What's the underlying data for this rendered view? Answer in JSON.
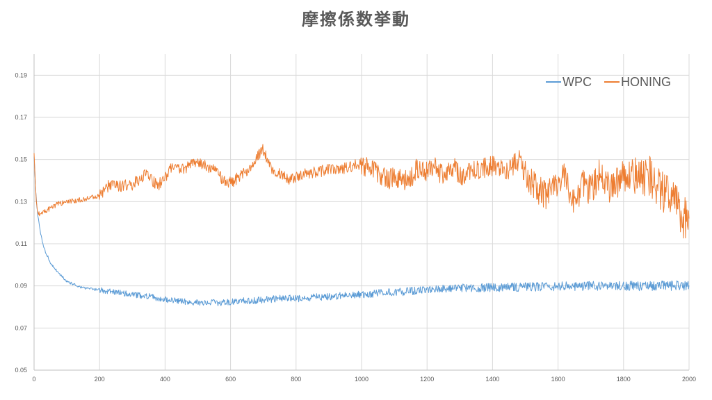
{
  "chart_data": {
    "type": "line",
    "title": "摩擦係数挙動",
    "xlabel": "",
    "ylabel": "",
    "xlim": [
      0,
      2000
    ],
    "ylim": [
      0.05,
      0.2
    ],
    "x_ticks": [
      0,
      200,
      400,
      600,
      800,
      1000,
      1200,
      1400,
      1600,
      1800,
      2000
    ],
    "y_ticks": [
      0.05,
      0.07,
      0.09,
      0.11,
      0.13,
      0.15,
      0.17,
      0.19
    ],
    "y_tick_labels": [
      "0.05",
      "0.07",
      "0.09",
      "0.11",
      "0.13",
      "0.15",
      "0.17",
      "0.19"
    ],
    "grid": "vertical and horizontal major gridlines",
    "legend_position": "top-right",
    "x": [
      0,
      5,
      10,
      20,
      30,
      50,
      75,
      100,
      150,
      200,
      230,
      250,
      300,
      340,
      360,
      380,
      400,
      420,
      440,
      460,
      480,
      500,
      520,
      540,
      560,
      580,
      600,
      620,
      640,
      660,
      680,
      700,
      720,
      740,
      760,
      780,
      800,
      850,
      900,
      950,
      1000,
      1020,
      1050,
      1080,
      1100,
      1130,
      1150,
      1170,
      1200,
      1220,
      1250,
      1280,
      1300,
      1350,
      1400,
      1450,
      1480,
      1500,
      1530,
      1560,
      1590,
      1600,
      1620,
      1650,
      1680,
      1700,
      1730,
      1760,
      1800,
      1830,
      1850,
      1880,
      1900,
      1930,
      1960,
      1980,
      2000
    ],
    "series": [
      {
        "name": "WPC",
        "color": "#5B9BD5",
        "values": [
          0.152,
          0.135,
          0.125,
          0.115,
          0.108,
          0.101,
          0.096,
          0.092,
          0.089,
          0.088,
          0.0875,
          0.087,
          0.086,
          0.085,
          0.085,
          0.084,
          0.0835,
          0.083,
          0.083,
          0.0825,
          0.0825,
          0.082,
          0.082,
          0.082,
          0.082,
          0.082,
          0.0825,
          0.0825,
          0.083,
          0.083,
          0.083,
          0.0835,
          0.0835,
          0.084,
          0.084,
          0.084,
          0.084,
          0.0845,
          0.085,
          0.0855,
          0.086,
          0.0862,
          0.0865,
          0.087,
          0.087,
          0.0872,
          0.0875,
          0.0878,
          0.088,
          0.0882,
          0.0885,
          0.0888,
          0.089,
          0.089,
          0.0892,
          0.0893,
          0.0894,
          0.0895,
          0.0896,
          0.0897,
          0.0898,
          0.0898,
          0.0899,
          0.0899,
          0.09,
          0.09,
          0.09,
          0.09,
          0.09,
          0.09,
          0.09,
          0.09,
          0.0901,
          0.0901,
          0.0901,
          0.0901,
          0.0902
        ]
      },
      {
        "name": "HONING",
        "color": "#ED7D31",
        "values": [
          0.152,
          0.135,
          0.125,
          0.124,
          0.125,
          0.127,
          0.129,
          0.13,
          0.131,
          0.133,
          0.138,
          0.137,
          0.138,
          0.143,
          0.14,
          0.138,
          0.141,
          0.147,
          0.146,
          0.145,
          0.148,
          0.149,
          0.147,
          0.146,
          0.143,
          0.14,
          0.139,
          0.141,
          0.143,
          0.147,
          0.151,
          0.155,
          0.147,
          0.144,
          0.142,
          0.14,
          0.142,
          0.144,
          0.145,
          0.146,
          0.148,
          0.146,
          0.144,
          0.14,
          0.142,
          0.14,
          0.141,
          0.146,
          0.144,
          0.147,
          0.142,
          0.147,
          0.142,
          0.145,
          0.147,
          0.145,
          0.15,
          0.143,
          0.137,
          0.133,
          0.136,
          0.141,
          0.141,
          0.131,
          0.138,
          0.135,
          0.143,
          0.135,
          0.144,
          0.143,
          0.141,
          0.142,
          0.137,
          0.133,
          0.128,
          0.123,
          0.122
        ]
      }
    ]
  }
}
